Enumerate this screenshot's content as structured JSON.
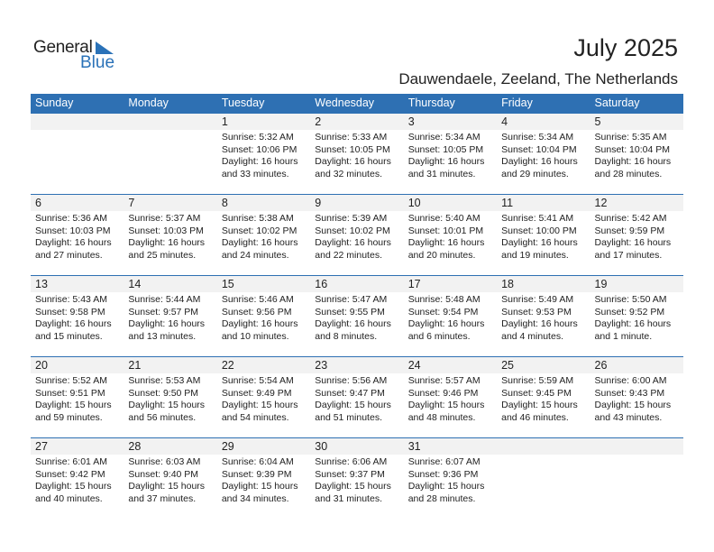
{
  "logo": {
    "general": "General",
    "blue": "Blue"
  },
  "title": "July 2025",
  "subtitle": "Dauwendaele, Zeeland, The Netherlands",
  "colors": {
    "header": "#2e70b3",
    "brand_blue": "#2a72b8",
    "day_strip": "#f2f2f2"
  },
  "weekdays": [
    "Sunday",
    "Monday",
    "Tuesday",
    "Wednesday",
    "Thursday",
    "Friday",
    "Saturday"
  ],
  "weeks": [
    [
      null,
      null,
      {
        "day": "1",
        "sunrise": "Sunrise: 5:32 AM",
        "sunset": "Sunset: 10:06 PM",
        "daylight": "Daylight: 16 hours",
        "minutes": "and 33 minutes."
      },
      {
        "day": "2",
        "sunrise": "Sunrise: 5:33 AM",
        "sunset": "Sunset: 10:05 PM",
        "daylight": "Daylight: 16 hours",
        "minutes": "and 32 minutes."
      },
      {
        "day": "3",
        "sunrise": "Sunrise: 5:34 AM",
        "sunset": "Sunset: 10:05 PM",
        "daylight": "Daylight: 16 hours",
        "minutes": "and 31 minutes."
      },
      {
        "day": "4",
        "sunrise": "Sunrise: 5:34 AM",
        "sunset": "Sunset: 10:04 PM",
        "daylight": "Daylight: 16 hours",
        "minutes": "and 29 minutes."
      },
      {
        "day": "5",
        "sunrise": "Sunrise: 5:35 AM",
        "sunset": "Sunset: 10:04 PM",
        "daylight": "Daylight: 16 hours",
        "minutes": "and 28 minutes."
      }
    ],
    [
      {
        "day": "6",
        "sunrise": "Sunrise: 5:36 AM",
        "sunset": "Sunset: 10:03 PM",
        "daylight": "Daylight: 16 hours",
        "minutes": "and 27 minutes."
      },
      {
        "day": "7",
        "sunrise": "Sunrise: 5:37 AM",
        "sunset": "Sunset: 10:03 PM",
        "daylight": "Daylight: 16 hours",
        "minutes": "and 25 minutes."
      },
      {
        "day": "8",
        "sunrise": "Sunrise: 5:38 AM",
        "sunset": "Sunset: 10:02 PM",
        "daylight": "Daylight: 16 hours",
        "minutes": "and 24 minutes."
      },
      {
        "day": "9",
        "sunrise": "Sunrise: 5:39 AM",
        "sunset": "Sunset: 10:02 PM",
        "daylight": "Daylight: 16 hours",
        "minutes": "and 22 minutes."
      },
      {
        "day": "10",
        "sunrise": "Sunrise: 5:40 AM",
        "sunset": "Sunset: 10:01 PM",
        "daylight": "Daylight: 16 hours",
        "minutes": "and 20 minutes."
      },
      {
        "day": "11",
        "sunrise": "Sunrise: 5:41 AM",
        "sunset": "Sunset: 10:00 PM",
        "daylight": "Daylight: 16 hours",
        "minutes": "and 19 minutes."
      },
      {
        "day": "12",
        "sunrise": "Sunrise: 5:42 AM",
        "sunset": "Sunset: 9:59 PM",
        "daylight": "Daylight: 16 hours",
        "minutes": "and 17 minutes."
      }
    ],
    [
      {
        "day": "13",
        "sunrise": "Sunrise: 5:43 AM",
        "sunset": "Sunset: 9:58 PM",
        "daylight": "Daylight: 16 hours",
        "minutes": "and 15 minutes."
      },
      {
        "day": "14",
        "sunrise": "Sunrise: 5:44 AM",
        "sunset": "Sunset: 9:57 PM",
        "daylight": "Daylight: 16 hours",
        "minutes": "and 13 minutes."
      },
      {
        "day": "15",
        "sunrise": "Sunrise: 5:46 AM",
        "sunset": "Sunset: 9:56 PM",
        "daylight": "Daylight: 16 hours",
        "minutes": "and 10 minutes."
      },
      {
        "day": "16",
        "sunrise": "Sunrise: 5:47 AM",
        "sunset": "Sunset: 9:55 PM",
        "daylight": "Daylight: 16 hours",
        "minutes": "and 8 minutes."
      },
      {
        "day": "17",
        "sunrise": "Sunrise: 5:48 AM",
        "sunset": "Sunset: 9:54 PM",
        "daylight": "Daylight: 16 hours",
        "minutes": "and 6 minutes."
      },
      {
        "day": "18",
        "sunrise": "Sunrise: 5:49 AM",
        "sunset": "Sunset: 9:53 PM",
        "daylight": "Daylight: 16 hours",
        "minutes": "and 4 minutes."
      },
      {
        "day": "19",
        "sunrise": "Sunrise: 5:50 AM",
        "sunset": "Sunset: 9:52 PM",
        "daylight": "Daylight: 16 hours",
        "minutes": "and 1 minute."
      }
    ],
    [
      {
        "day": "20",
        "sunrise": "Sunrise: 5:52 AM",
        "sunset": "Sunset: 9:51 PM",
        "daylight": "Daylight: 15 hours",
        "minutes": "and 59 minutes."
      },
      {
        "day": "21",
        "sunrise": "Sunrise: 5:53 AM",
        "sunset": "Sunset: 9:50 PM",
        "daylight": "Daylight: 15 hours",
        "minutes": "and 56 minutes."
      },
      {
        "day": "22",
        "sunrise": "Sunrise: 5:54 AM",
        "sunset": "Sunset: 9:49 PM",
        "daylight": "Daylight: 15 hours",
        "minutes": "and 54 minutes."
      },
      {
        "day": "23",
        "sunrise": "Sunrise: 5:56 AM",
        "sunset": "Sunset: 9:47 PM",
        "daylight": "Daylight: 15 hours",
        "minutes": "and 51 minutes."
      },
      {
        "day": "24",
        "sunrise": "Sunrise: 5:57 AM",
        "sunset": "Sunset: 9:46 PM",
        "daylight": "Daylight: 15 hours",
        "minutes": "and 48 minutes."
      },
      {
        "day": "25",
        "sunrise": "Sunrise: 5:59 AM",
        "sunset": "Sunset: 9:45 PM",
        "daylight": "Daylight: 15 hours",
        "minutes": "and 46 minutes."
      },
      {
        "day": "26",
        "sunrise": "Sunrise: 6:00 AM",
        "sunset": "Sunset: 9:43 PM",
        "daylight": "Daylight: 15 hours",
        "minutes": "and 43 minutes."
      }
    ],
    [
      {
        "day": "27",
        "sunrise": "Sunrise: 6:01 AM",
        "sunset": "Sunset: 9:42 PM",
        "daylight": "Daylight: 15 hours",
        "minutes": "and 40 minutes."
      },
      {
        "day": "28",
        "sunrise": "Sunrise: 6:03 AM",
        "sunset": "Sunset: 9:40 PM",
        "daylight": "Daylight: 15 hours",
        "minutes": "and 37 minutes."
      },
      {
        "day": "29",
        "sunrise": "Sunrise: 6:04 AM",
        "sunset": "Sunset: 9:39 PM",
        "daylight": "Daylight: 15 hours",
        "minutes": "and 34 minutes."
      },
      {
        "day": "30",
        "sunrise": "Sunrise: 6:06 AM",
        "sunset": "Sunset: 9:37 PM",
        "daylight": "Daylight: 15 hours",
        "minutes": "and 31 minutes."
      },
      {
        "day": "31",
        "sunrise": "Sunrise: 6:07 AM",
        "sunset": "Sunset: 9:36 PM",
        "daylight": "Daylight: 15 hours",
        "minutes": "and 28 minutes."
      },
      null,
      null
    ]
  ]
}
